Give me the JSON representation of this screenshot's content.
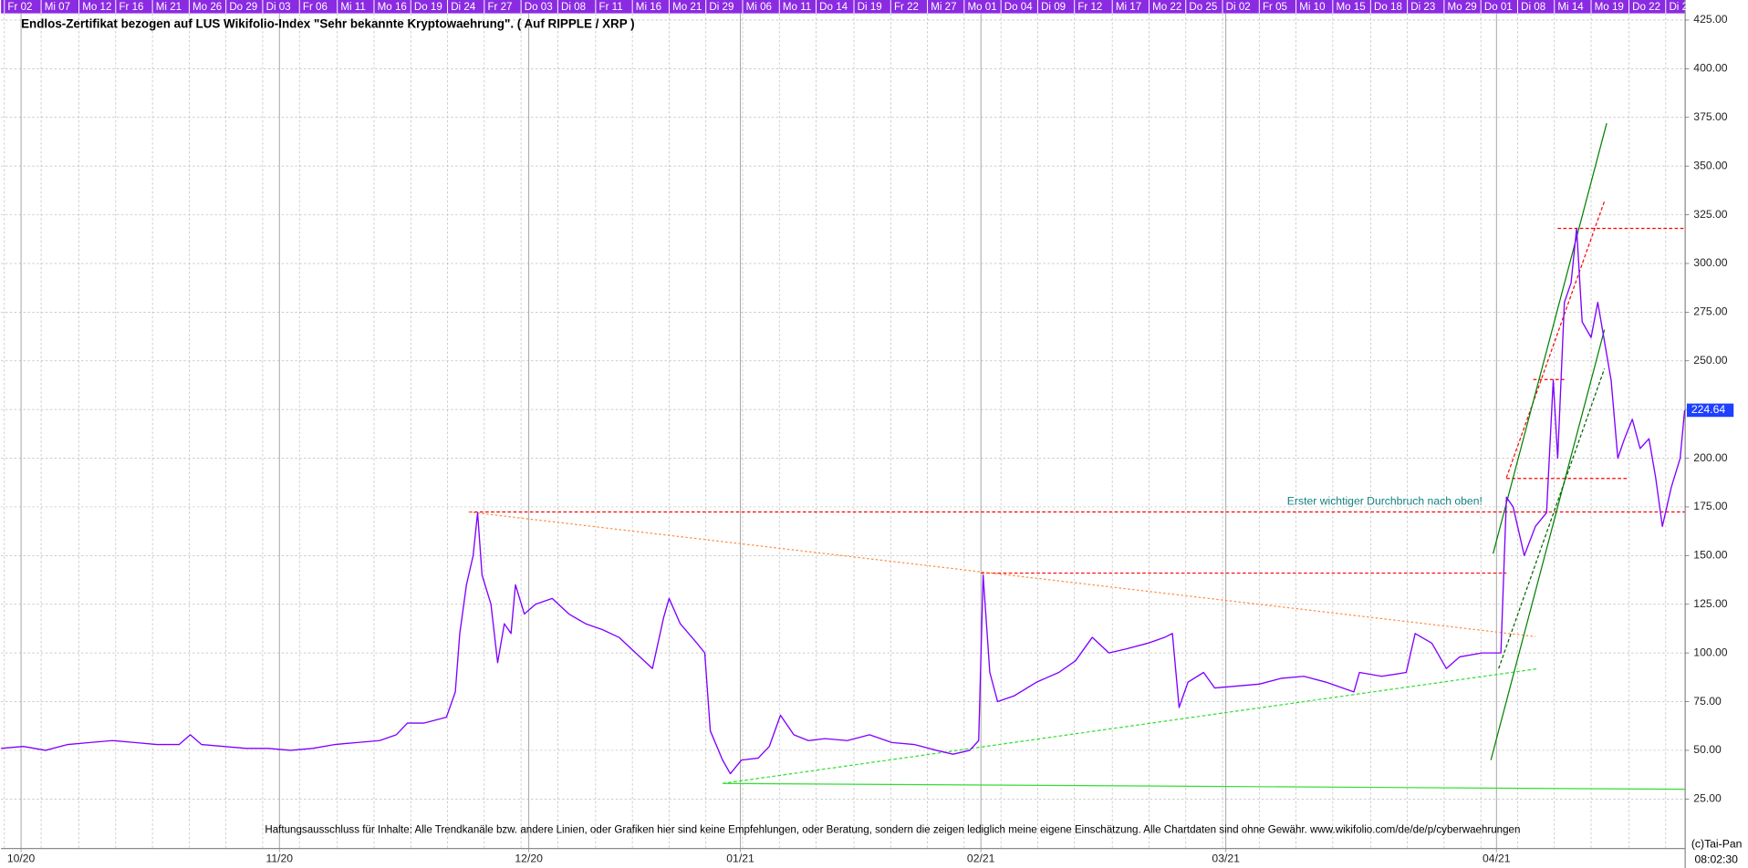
{
  "chart_data": {
    "type": "line",
    "title": "Endlos-Zertifikat bezogen auf LUS Wikifolio-Index \"Sehr bekannte Kryptowaehrung\". ( Auf RIPPLE / XRP )",
    "annotations": [
      "Erster wichtiger Durchbruch nach oben!",
      "Haftungsausschluss für Inhalte: Alle Trendkanäle bzw. andere Linien, oder Grafiken hier sind keine Empfehlungen, oder Beratung, sondern die zeigen lediglich meine eigene Einschätzung. Alle Chartdaten sind ohne Gewähr.  www.wikifolio.com/de/de/p/cyberwaehrungen",
      "(c)Tai-Pan",
      "08:02:30"
    ],
    "x": [
      0,
      20,
      40,
      60,
      80,
      100,
      120,
      140,
      160,
      170,
      180,
      200,
      220,
      240,
      260,
      280,
      300,
      320,
      340,
      355,
      365,
      380,
      400,
      408,
      412,
      418,
      424,
      428,
      432,
      440,
      446,
      452,
      458,
      462,
      470,
      480,
      495,
      510,
      525,
      540,
      555,
      570,
      585,
      595,
      600,
      610,
      625,
      632,
      637,
      648,
      655,
      665,
      680,
      690,
      700,
      712,
      725,
      740,
      760,
      780,
      800,
      820,
      840,
      855,
      870,
      878,
      882,
      888,
      895,
      910,
      930,
      950,
      965,
      980,
      995,
      1010,
      1030,
      1045,
      1052,
      1058,
      1066,
      1080,
      1090,
      1110,
      1130,
      1150,
      1170,
      1190,
      1205,
      1215,
      1220,
      1240,
      1262,
      1270,
      1285,
      1298,
      1310,
      1330,
      1347,
      1352,
      1358,
      1368,
      1378,
      1388,
      1394,
      1398,
      1404,
      1410,
      1415,
      1420,
      1428,
      1434,
      1440,
      1446,
      1452,
      1458,
      1465,
      1472,
      1480,
      1486,
      1492,
      1500,
      1508,
      1512
    ],
    "series": [
      {
        "color": "#7f00ff",
        "values": [
          51,
          52,
          50,
          53,
          54,
          55,
          54,
          53,
          53,
          58,
          53,
          52,
          51,
          51,
          50,
          51,
          53,
          54,
          55,
          58,
          64,
          64,
          67,
          80,
          110,
          135,
          150,
          172,
          140,
          125,
          95,
          115,
          110,
          135,
          120,
          125,
          128,
          120,
          115,
          112,
          108,
          100,
          92,
          118,
          128,
          115,
          105,
          100,
          60,
          45,
          38,
          45,
          46,
          52,
          68,
          58,
          55,
          56,
          55,
          58,
          54,
          53,
          50,
          48,
          50,
          55,
          140,
          90,
          75,
          78,
          85,
          90,
          96,
          108,
          100,
          102,
          105,
          108,
          110,
          72,
          85,
          90,
          82,
          83,
          84,
          87,
          88,
          85,
          82,
          80,
          90,
          88,
          90,
          110,
          105,
          92,
          98,
          100,
          100,
          180,
          175,
          150,
          165,
          172,
          240,
          200,
          280,
          290,
          318,
          270,
          262,
          280,
          260,
          240,
          200,
          210,
          220,
          205,
          210,
          190,
          165,
          185,
          200,
          224.64
        ]
      }
    ],
    "xlim": [
      0,
      1512
    ],
    "ylim": [
      0,
      435
    ],
    "yticks": [
      {
        "value": 25,
        "label": "25.00"
      },
      {
        "value": 50,
        "label": "50.00"
      },
      {
        "value": 75,
        "label": "75.00"
      },
      {
        "value": 100,
        "label": "100.00"
      },
      {
        "value": 125,
        "label": "125.00"
      },
      {
        "value": 150,
        "label": "150.00"
      },
      {
        "value": 175,
        "label": "175.00"
      },
      {
        "value": 200,
        "label": "200.00"
      },
      {
        "value": 225,
        "label": "225.00"
      },
      {
        "value": 250,
        "label": "250.00"
      },
      {
        "value": 275,
        "label": "275.00"
      },
      {
        "value": 300,
        "label": "300.00"
      },
      {
        "value": 325,
        "label": "325.00"
      },
      {
        "value": 350,
        "label": "350.00"
      },
      {
        "value": 375,
        "label": "375.00"
      },
      {
        "value": 400,
        "label": "400.00"
      },
      {
        "value": 425,
        "label": "425.00"
      }
    ],
    "xticks": [
      {
        "value": 18,
        "label": "10/20"
      },
      {
        "value": 250,
        "label": "11/20"
      },
      {
        "value": 474,
        "label": "12/20"
      },
      {
        "value": 664,
        "label": "01/21"
      },
      {
        "value": 880,
        "label": "02/21"
      },
      {
        "value": 1100,
        "label": "03/21"
      },
      {
        "value": 1343,
        "label": "04/21"
      }
    ],
    "x2ticks": [
      {
        "value": 3,
        "label": "Fr 02"
      },
      {
        "value": 36,
        "label": "Mi 07"
      },
      {
        "value": 70,
        "label": "Mo 12"
      },
      {
        "value": 103,
        "label": "Fr 16"
      },
      {
        "value": 136,
        "label": "Mi 21"
      },
      {
        "value": 169,
        "label": "Mo 26"
      },
      {
        "value": 202,
        "label": "Do 29"
      },
      {
        "value": 235,
        "label": "Di 03"
      },
      {
        "value": 268,
        "label": "Fr 06"
      },
      {
        "value": 302,
        "label": "Mi 11"
      },
      {
        "value": 335,
        "label": "Mo 16"
      },
      {
        "value": 368,
        "label": "Do 19"
      },
      {
        "value": 401,
        "label": "Di 24"
      },
      {
        "value": 434,
        "label": "Fr 27"
      },
      {
        "value": 467,
        "label": "Do 03"
      },
      {
        "value": 500,
        "label": "Di 08"
      },
      {
        "value": 534,
        "label": "Fr 11"
      },
      {
        "value": 567,
        "label": "Mi 16"
      },
      {
        "value": 600,
        "label": "Mo 21"
      },
      {
        "value": 633,
        "label": "Di 29"
      },
      {
        "value": 666,
        "label": "Mi 06"
      },
      {
        "value": 699,
        "label": "Mo 11"
      },
      {
        "value": 732,
        "label": "Do 14"
      },
      {
        "value": 766,
        "label": "Di 19"
      },
      {
        "value": 799,
        "label": "Fr 22"
      },
      {
        "value": 832,
        "label": "Mi 27"
      },
      {
        "value": 865,
        "label": "Mo 01"
      },
      {
        "value": 898,
        "label": "Do 04"
      },
      {
        "value": 931,
        "label": "Di 09"
      },
      {
        "value": 964,
        "label": "Fr 12"
      },
      {
        "value": 998,
        "label": "Mi 17"
      },
      {
        "value": 1031,
        "label": "Mo 22"
      },
      {
        "value": 1064,
        "label": "Do 25"
      },
      {
        "value": 1097,
        "label": "Di 02"
      },
      {
        "value": 1130,
        "label": "Fr 05"
      },
      {
        "value": 1163,
        "label": "Mi 10"
      },
      {
        "value": 1196,
        "label": "Mo 15"
      },
      {
        "value": 1230,
        "label": "Do 18"
      },
      {
        "value": 1263,
        "label": "Di 23"
      },
      {
        "value": 1296,
        "label": "Mo 29"
      },
      {
        "value": 1329,
        "label": "Do 01"
      },
      {
        "value": 1362,
        "label": "Di 08"
      },
      {
        "value": 1395,
        "label": "Mi 14"
      },
      {
        "value": 1428,
        "label": "Mo 19"
      },
      {
        "value": 1462,
        "label": "Do 22"
      },
      {
        "value": 1495,
        "label": "Di 2"
      }
    ],
    "grid": true,
    "trendlines": [
      {
        "x": [
          420,
          1512
        ],
        "y": [
          172.4,
          172.4
        ],
        "color": "#ff0000",
        "dash": "3,2"
      },
      {
        "x": [
          880,
          1352
        ],
        "y": [
          141,
          141
        ],
        "color": "#ff0000",
        "dash": "3,2"
      },
      {
        "x": [
          1352,
          1462
        ],
        "y": [
          189.6,
          189.6
        ],
        "color": "#ff0000",
        "dash": "3,2"
      },
      {
        "x": [
          1398,
          1512
        ],
        "y": [
          318,
          318
        ],
        "color": "#ff0000",
        "dash": "3,2"
      },
      {
        "x": [
          1376,
          1406
        ],
        "y": [
          240.4,
          240.4
        ],
        "color": "#ff0000",
        "dash": "3,2"
      },
      {
        "x": [
          1352,
          1440
        ],
        "y": [
          190,
          332
        ],
        "color": "#ff0000",
        "dash": "3,2"
      },
      {
        "x": [
          420,
          1378
        ],
        "y": [
          172.4,
          108.4
        ],
        "color": "#ff8c40",
        "dash": "2,2"
      },
      {
        "x": [
          648,
          1380
        ],
        "y": [
          33,
          91.9
        ],
        "color": "#33dd33",
        "dash": "3,2"
      },
      {
        "x": [
          648,
          1512
        ],
        "y": [
          33,
          30
        ],
        "color": "#33dd33",
        "dash": ""
      },
      {
        "x": [
          1340,
          1442
        ],
        "y": [
          151,
          372
        ],
        "color": "#008000",
        "dash": ""
      },
      {
        "x": [
          1338,
          1440
        ],
        "y": [
          45,
          266
        ],
        "color": "#008000",
        "dash": ""
      },
      {
        "x": [
          1345,
          1440
        ],
        "y": [
          92,
          246
        ],
        "color": "#006000",
        "dash": "3,2"
      }
    ]
  }
}
